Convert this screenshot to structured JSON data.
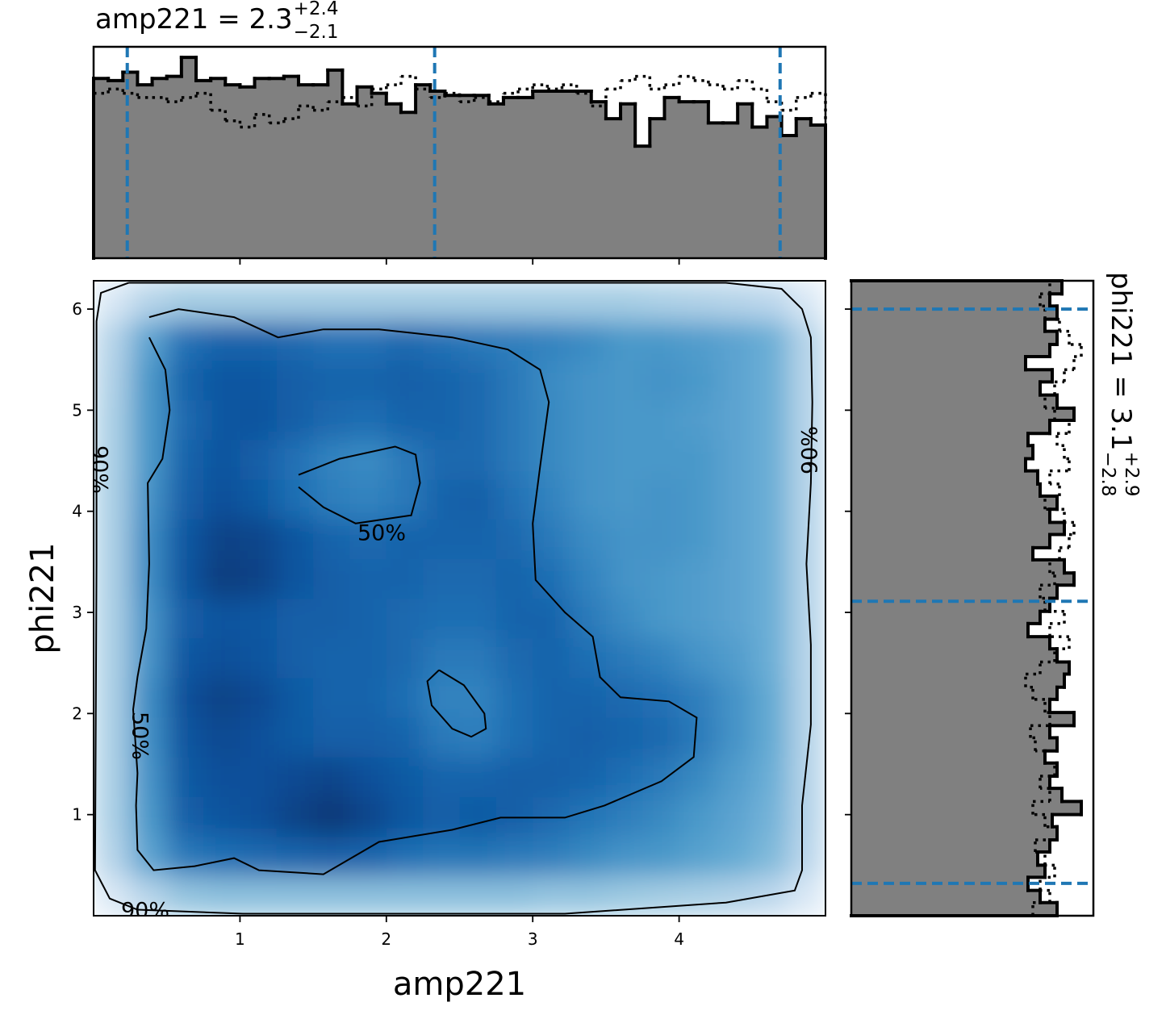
{
  "chart_data": [
    {
      "type": "histogram",
      "orientation": "vertical",
      "title_main": "amp221 = 2.3",
      "title_sup": "+2.4",
      "title_sub": "−2.1",
      "xlim": [
        0,
        5
      ],
      "ylim": [
        0,
        1
      ],
      "bins": [
        0,
        0.1,
        0.2,
        0.3,
        0.4,
        0.5,
        0.6,
        0.7,
        0.8,
        0.9,
        1.0,
        1.1,
        1.2,
        1.3,
        1.4,
        1.5,
        1.6,
        1.7,
        1.8,
        1.9,
        2.0,
        2.1,
        2.2,
        2.3,
        2.4,
        2.5,
        2.6,
        2.7,
        2.8,
        2.9,
        3.0,
        3.1,
        3.2,
        3.3,
        3.4,
        3.5,
        3.6,
        3.7,
        3.8,
        3.9,
        4.0,
        4.1,
        4.2,
        4.3,
        4.4,
        4.5,
        4.6,
        4.7,
        4.8,
        4.9,
        5.0
      ],
      "series": [
        {
          "style": "solid",
          "color": "#000000",
          "fill": "#808080",
          "values": [
            0.85,
            0.84,
            0.88,
            0.82,
            0.85,
            0.86,
            0.95,
            0.84,
            0.85,
            0.82,
            0.81,
            0.85,
            0.85,
            0.86,
            0.82,
            0.82,
            0.89,
            0.73,
            0.81,
            0.78,
            0.73,
            0.69,
            0.82,
            0.79,
            0.77,
            0.77,
            0.77,
            0.73,
            0.76,
            0.76,
            0.79,
            0.79,
            0.79,
            0.79,
            0.74,
            0.66,
            0.73,
            0.53,
            0.66,
            0.76,
            0.74,
            0.74,
            0.64,
            0.64,
            0.73,
            0.62,
            0.67,
            0.58,
            0.66,
            0.63
          ]
        },
        {
          "style": "dotted",
          "color": "#000000",
          "values": [
            0.78,
            0.8,
            0.78,
            0.76,
            0.76,
            0.74,
            0.76,
            0.78,
            0.7,
            0.65,
            0.62,
            0.68,
            0.64,
            0.66,
            0.72,
            0.7,
            0.74,
            0.76,
            0.72,
            0.8,
            0.82,
            0.86,
            0.8,
            0.76,
            0.78,
            0.74,
            0.76,
            0.74,
            0.78,
            0.8,
            0.82,
            0.8,
            0.82,
            0.78,
            0.72,
            0.8,
            0.84,
            0.86,
            0.8,
            0.82,
            0.86,
            0.84,
            0.82,
            0.8,
            0.84,
            0.8,
            0.74,
            0.7,
            0.76,
            0.78
          ]
        }
      ],
      "quantiles": [
        0.23,
        2.33,
        4.69
      ],
      "quantile_color": "#1f77b4"
    },
    {
      "type": "density2d",
      "xlabel": "amp221",
      "ylabel": "phi221",
      "xlim": [
        0,
        5
      ],
      "ylim": [
        0,
        6.28
      ],
      "xticks": [
        1,
        2,
        3,
        4
      ],
      "yticks": [
        1,
        2,
        3,
        4,
        5,
        6
      ],
      "colormap": "Blues",
      "z": [
        [
          0.15,
          0.3,
          0.4,
          0.42,
          0.42,
          0.42,
          0.42,
          0.42,
          0.42,
          0.42,
          0.42,
          0.42,
          0.4,
          0.4,
          0.38,
          0.36,
          0.34,
          0.32,
          0.28,
          0.15
        ],
        [
          0.3,
          0.55,
          0.72,
          0.76,
          0.78,
          0.8,
          0.82,
          0.8,
          0.76,
          0.74,
          0.74,
          0.72,
          0.7,
          0.66,
          0.62,
          0.6,
          0.56,
          0.52,
          0.45,
          0.28
        ],
        [
          0.33,
          0.6,
          0.82,
          0.86,
          0.88,
          0.93,
          0.97,
          0.92,
          0.86,
          0.82,
          0.84,
          0.82,
          0.78,
          0.74,
          0.7,
          0.66,
          0.6,
          0.55,
          0.48,
          0.3
        ],
        [
          0.33,
          0.62,
          0.84,
          0.88,
          0.88,
          0.9,
          0.92,
          0.88,
          0.84,
          0.8,
          0.8,
          0.82,
          0.82,
          0.8,
          0.76,
          0.72,
          0.66,
          0.58,
          0.5,
          0.3
        ],
        [
          0.33,
          0.64,
          0.86,
          0.9,
          0.88,
          0.84,
          0.82,
          0.82,
          0.8,
          0.72,
          0.7,
          0.76,
          0.8,
          0.82,
          0.8,
          0.78,
          0.72,
          0.62,
          0.52,
          0.3
        ],
        [
          0.33,
          0.65,
          0.88,
          0.93,
          0.9,
          0.84,
          0.8,
          0.8,
          0.76,
          0.68,
          0.68,
          0.76,
          0.8,
          0.8,
          0.78,
          0.75,
          0.7,
          0.62,
          0.52,
          0.3
        ],
        [
          0.33,
          0.62,
          0.85,
          0.88,
          0.86,
          0.82,
          0.8,
          0.8,
          0.78,
          0.72,
          0.72,
          0.78,
          0.8,
          0.76,
          0.72,
          0.68,
          0.62,
          0.58,
          0.5,
          0.3
        ],
        [
          0.33,
          0.62,
          0.82,
          0.86,
          0.85,
          0.82,
          0.82,
          0.8,
          0.78,
          0.76,
          0.76,
          0.8,
          0.8,
          0.72,
          0.65,
          0.6,
          0.58,
          0.55,
          0.5,
          0.3
        ],
        [
          0.33,
          0.65,
          0.86,
          0.95,
          0.93,
          0.86,
          0.82,
          0.8,
          0.8,
          0.78,
          0.78,
          0.8,
          0.76,
          0.68,
          0.62,
          0.6,
          0.58,
          0.55,
          0.5,
          0.3
        ],
        [
          0.33,
          0.65,
          0.85,
          0.93,
          0.92,
          0.86,
          0.8,
          0.78,
          0.8,
          0.8,
          0.8,
          0.78,
          0.72,
          0.65,
          0.62,
          0.62,
          0.6,
          0.55,
          0.5,
          0.3
        ],
        [
          0.33,
          0.62,
          0.82,
          0.88,
          0.84,
          0.76,
          0.7,
          0.68,
          0.72,
          0.8,
          0.82,
          0.75,
          0.68,
          0.62,
          0.6,
          0.62,
          0.6,
          0.55,
          0.5,
          0.3
        ],
        [
          0.33,
          0.6,
          0.8,
          0.86,
          0.82,
          0.75,
          0.68,
          0.65,
          0.72,
          0.78,
          0.78,
          0.72,
          0.66,
          0.62,
          0.6,
          0.6,
          0.6,
          0.55,
          0.5,
          0.3
        ],
        [
          0.33,
          0.6,
          0.78,
          0.85,
          0.86,
          0.82,
          0.78,
          0.76,
          0.8,
          0.8,
          0.78,
          0.72,
          0.66,
          0.62,
          0.6,
          0.6,
          0.58,
          0.55,
          0.5,
          0.3
        ],
        [
          0.32,
          0.6,
          0.8,
          0.85,
          0.85,
          0.82,
          0.8,
          0.8,
          0.82,
          0.8,
          0.78,
          0.72,
          0.65,
          0.62,
          0.6,
          0.62,
          0.6,
          0.55,
          0.5,
          0.3
        ],
        [
          0.3,
          0.55,
          0.75,
          0.8,
          0.8,
          0.78,
          0.75,
          0.75,
          0.78,
          0.75,
          0.72,
          0.7,
          0.68,
          0.65,
          0.6,
          0.6,
          0.58,
          0.55,
          0.5,
          0.3
        ],
        [
          0.15,
          0.3,
          0.35,
          0.35,
          0.35,
          0.35,
          0.35,
          0.35,
          0.35,
          0.35,
          0.35,
          0.35,
          0.35,
          0.35,
          0.35,
          0.33,
          0.32,
          0.3,
          0.28,
          0.15
        ]
      ],
      "contour_color": "#000000",
      "contours": [
        {
          "label": "50%",
          "paths": [
            {
              "x": [
                0.38,
                0.58,
                0.96,
                1.26,
                1.57,
                1.95,
                2.45,
                2.83,
                3.05,
                3.11,
                3.05,
                3.0,
                3.02,
                3.22,
                3.41,
                3.46,
                3.6,
                3.93,
                4.12,
                4.1,
                3.88,
                3.49,
                3.22,
                2.78,
                2.45,
                1.95,
                1.57,
                1.13,
                0.96,
                0.69,
                0.41,
                0.3,
                0.29,
                0.3,
                0.27,
                0.3,
                0.36,
                0.38,
                0.37,
                0.47,
                0.52,
                0.49,
                0.38
              ],
              "y": [
                5.92,
                6.0,
                5.92,
                5.72,
                5.8,
                5.8,
                5.72,
                5.6,
                5.4,
                5.08,
                4.44,
                3.88,
                3.32,
                3.0,
                2.76,
                2.36,
                2.16,
                2.12,
                1.96,
                1.57,
                1.33,
                1.09,
                0.97,
                0.97,
                0.85,
                0.73,
                0.41,
                0.45,
                0.57,
                0.49,
                0.45,
                0.65,
                1.09,
                1.41,
                2.04,
                2.36,
                2.84,
                3.48,
                4.28,
                4.52,
                5.0,
                5.4,
                5.72
              ]
            },
            {
              "x": [
                1.4,
                1.68,
                2.06,
                2.2,
                2.23,
                2.17,
                1.79,
                1.57,
                1.4
              ],
              "y": [
                4.36,
                4.52,
                4.64,
                4.56,
                4.28,
                3.96,
                3.88,
                4.04,
                4.24
              ]
            },
            {
              "x": [
                2.36,
                2.53,
                2.67,
                2.68,
                2.58,
                2.45,
                2.31,
                2.28,
                2.36
              ],
              "y": [
                2.43,
                2.28,
                2.0,
                1.85,
                1.77,
                1.85,
                2.08,
                2.32,
                2.43
              ]
            }
          ]
        },
        {
          "label": "90%",
          "paths": [
            {
              "x": [
                0.24,
                0.05,
                0.02,
                0.02,
                0.01,
                0.11,
                0.3,
                1.02,
                3.22,
                4.32,
                4.79,
                4.84,
                4.84,
                4.9,
                4.9,
                4.87,
                4.9,
                4.91,
                4.9,
                4.84,
                4.7,
                4.32,
                0.24
              ],
              "y": [
                6.26,
                6.16,
                5.88,
                3.48,
                0.45,
                0.17,
                0.06,
                0.02,
                0.02,
                0.13,
                0.25,
                0.45,
                1.09,
                1.89,
                2.68,
                3.48,
                4.28,
                5.08,
                5.72,
                6.0,
                6.2,
                6.26,
                6.26
              ]
            }
          ]
        }
      ]
    },
    {
      "type": "histogram",
      "orientation": "horizontal",
      "title_main": "phi221 = 3.1",
      "title_sup": "+2.9",
      "title_sub": "−2.8",
      "xlim": [
        0,
        1
      ],
      "ylim": [
        0,
        6.28
      ],
      "bins": [
        0,
        0.13,
        0.25,
        0.38,
        0.5,
        0.63,
        0.75,
        0.88,
        1.0,
        1.13,
        1.26,
        1.38,
        1.51,
        1.63,
        1.76,
        1.88,
        2.01,
        2.14,
        2.26,
        2.39,
        2.51,
        2.64,
        2.76,
        2.89,
        3.01,
        3.14,
        3.27,
        3.39,
        3.52,
        3.64,
        3.77,
        3.89,
        4.02,
        4.15,
        4.27,
        4.4,
        4.52,
        4.65,
        4.77,
        4.9,
        5.02,
        5.15,
        5.28,
        5.4,
        5.53,
        5.65,
        5.78,
        5.9,
        6.03,
        6.15,
        6.28
      ],
      "series": [
        {
          "style": "solid",
          "color": "#000000",
          "fill": "#808080",
          "values": [
            0.85,
            0.78,
            0.73,
            0.8,
            0.77,
            0.82,
            0.85,
            0.83,
            0.95,
            0.87,
            0.82,
            0.85,
            0.8,
            0.85,
            0.82,
            0.92,
            0.82,
            0.85,
            0.88,
            0.9,
            0.85,
            0.82,
            0.73,
            0.78,
            0.82,
            0.85,
            0.92,
            0.88,
            0.75,
            0.82,
            0.88,
            0.82,
            0.85,
            0.78,
            0.77,
            0.72,
            0.75,
            0.73,
            0.82,
            0.92,
            0.85,
            0.78,
            0.83,
            0.72,
            0.82,
            0.85,
            0.8,
            0.85,
            0.82,
            0.87
          ]
        },
        {
          "style": "dotted",
          "color": "#000000",
          "values": [
            0.75,
            0.82,
            0.78,
            0.84,
            0.8,
            0.76,
            0.85,
            0.8,
            0.75,
            0.82,
            0.78,
            0.84,
            0.8,
            0.76,
            0.74,
            0.82,
            0.8,
            0.75,
            0.72,
            0.78,
            0.84,
            0.9,
            0.82,
            0.88,
            0.8,
            0.78,
            0.84,
            0.82,
            0.86,
            0.9,
            0.92,
            0.88,
            0.8,
            0.86,
            0.82,
            0.9,
            0.88,
            0.85,
            0.9,
            0.84,
            0.8,
            0.84,
            0.88,
            0.92,
            0.95,
            0.9,
            0.86,
            0.8,
            0.78,
            0.82
          ]
        }
      ],
      "quantiles": [
        0.32,
        3.11,
        6.0
      ],
      "quantile_color": "#1f77b4"
    }
  ]
}
